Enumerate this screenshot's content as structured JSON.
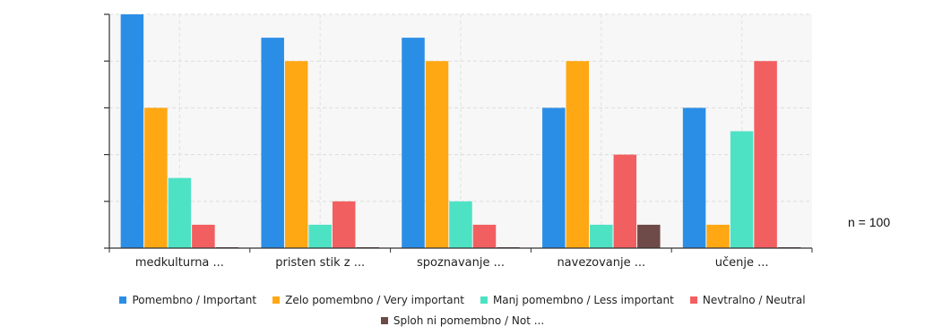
{
  "chart_data": {
    "type": "bar",
    "categories": [
      "medkulturna ...",
      "pristen stik z ...",
      "spoznavanje ...",
      "navezovanje ...",
      "učenje ..."
    ],
    "series": [
      {
        "name": "Pomembno / Important",
        "color": "#2b8ee6",
        "values": [
          10,
          9,
          9,
          6,
          6
        ]
      },
      {
        "name": "Zelo pomembno / Very important",
        "color": "#ffa814",
        "values": [
          6,
          8,
          8,
          8,
          1
        ]
      },
      {
        "name": "Manj pomembno / Less important",
        "color": "#4ee2c4",
        "values": [
          3,
          1,
          2,
          1,
          5
        ]
      },
      {
        "name": "Nevtralno / Neutral",
        "color": "#f25f60",
        "values": [
          1,
          2,
          1,
          4,
          8
        ]
      },
      {
        "name": "Sploh ni pomembno / Not ...",
        "color": "#6e4a48",
        "values": [
          0,
          0,
          0,
          1,
          0
        ]
      }
    ],
    "ylim": [
      0,
      10
    ],
    "grid": true,
    "legend_position": "bottom",
    "annotation": "n = 100"
  }
}
